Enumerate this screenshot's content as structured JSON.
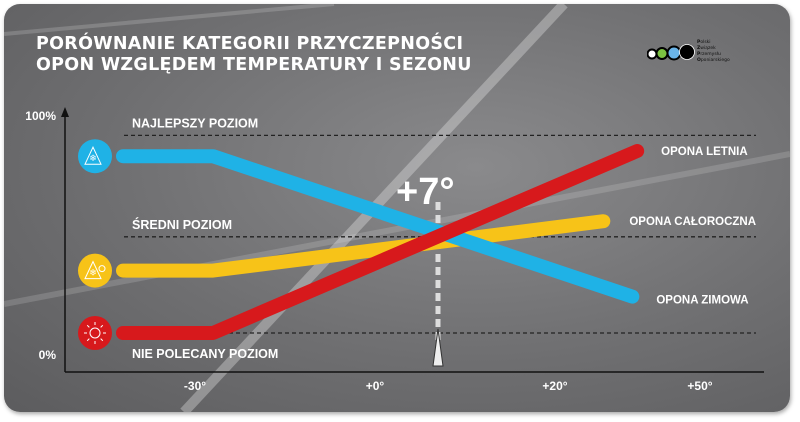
{
  "title": [
    "PORÓWNANIE KATEGORII PRZYCZEPNOŚCI",
    "OPON WZGLĘDEM TEMPERATURY I SEZONU"
  ],
  "logo": {
    "text": [
      "Polski",
      "Związek",
      "Przemysłu",
      "Oponiarskiego"
    ],
    "dot_colors": [
      "#ffffff",
      "#7cc242",
      "#6ab4e8",
      "#000000"
    ]
  },
  "chart_data": {
    "type": "line",
    "title": "PORÓWNANIE KATEGORII PRZYCZEPNOŚCI OPON WZGLĘDEM TEMPERATURY I SEZONU",
    "xlabel": "",
    "ylabel": "",
    "x_ticks": [
      {
        "value": -30,
        "label": "-30°"
      },
      {
        "value": 0,
        "label": "+0°"
      },
      {
        "value": 20,
        "label": "+20°"
      },
      {
        "value": 50,
        "label": "+50°"
      }
    ],
    "y_ticks": [
      {
        "value": 0,
        "label": "0%"
      },
      {
        "value": 100,
        "label": "100%"
      }
    ],
    "ylim": [
      0,
      100
    ],
    "grid": false,
    "reference_levels": [
      {
        "name": "NAJLEPSZY POZIOM",
        "value": 91
      },
      {
        "name": "ŚREDNI POZIOM",
        "value": 52
      },
      {
        "name": "NIE POLECANY POZIOM",
        "value": 15
      }
    ],
    "marker": {
      "label": "+7°",
      "value": 7
    },
    "series": [
      {
        "name": "OPONA ZIMOWA",
        "color": "#1fb2e6",
        "icon": "snowflake-mountain-icon",
        "x": [
          -42,
          -27,
          36
        ],
        "y": [
          83,
          83,
          29
        ]
      },
      {
        "name": "OPONA CAŁOROCZNA",
        "color": "#f7c318",
        "icon": "snowflake-sun-icon",
        "x": [
          -42,
          -27,
          30
        ],
        "y": [
          39,
          39,
          58
        ]
      },
      {
        "name": "OPONA LETNIA",
        "color": "#d7191c",
        "icon": "sun-icon",
        "x": [
          -42,
          -27,
          37
        ],
        "y": [
          15,
          15,
          85
        ]
      }
    ]
  }
}
